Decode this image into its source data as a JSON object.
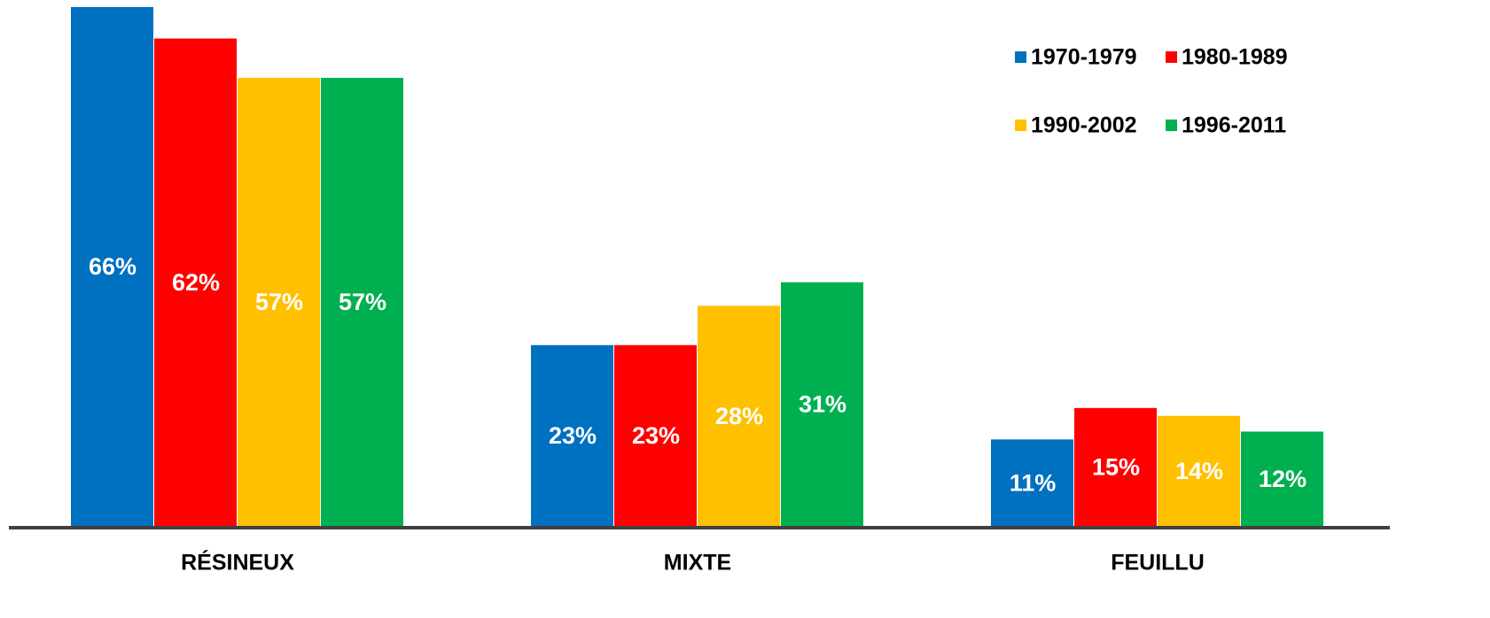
{
  "chart_data": {
    "type": "bar",
    "categories": [
      "RÉSINEUX",
      "MIXTE",
      "FEUILLU"
    ],
    "series": [
      {
        "name": "1970-1979",
        "color": "#0070c0",
        "values": [
          66,
          23,
          11
        ],
        "value_labels": [
          "66%",
          "23%",
          "11%"
        ]
      },
      {
        "name": "1980-1989",
        "color": "#ff0000",
        "values": [
          62,
          23,
          15
        ],
        "value_labels": [
          "62%",
          "23%",
          "15%"
        ]
      },
      {
        "name": "1990-2002",
        "color": "#ffc000",
        "values": [
          57,
          28,
          14
        ],
        "value_labels": [
          "57%",
          "28%",
          "14%"
        ]
      },
      {
        "name": "1996-2011",
        "color": "#00b050",
        "values": [
          57,
          31,
          12
        ],
        "value_labels": [
          "57%",
          "31%",
          "12%"
        ]
      }
    ]
  }
}
